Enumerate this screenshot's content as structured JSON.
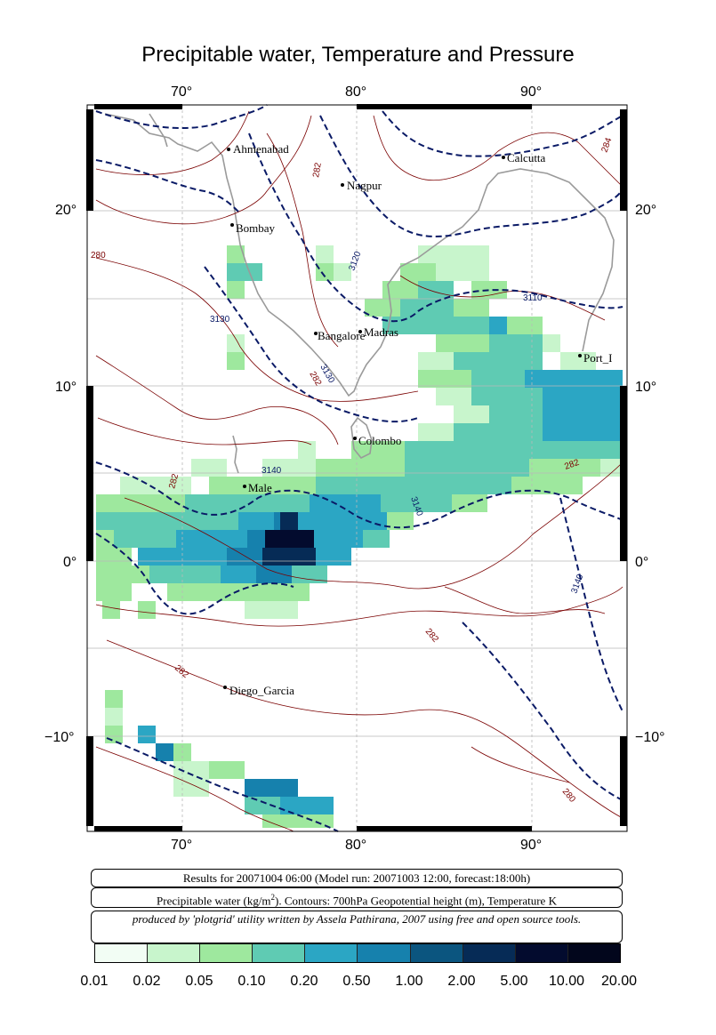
{
  "title": "Precipitable water, Temperature and Pressure",
  "axes": {
    "lon_ticks": [
      "70°",
      "80°",
      "90°"
    ],
    "lat_ticks": [
      "20°",
      "10°",
      "0°",
      "−10°"
    ]
  },
  "cities": [
    {
      "name": "Ahmenabad"
    },
    {
      "name": "Calcutta"
    },
    {
      "name": "Nagpur"
    },
    {
      "name": "Bombay"
    },
    {
      "name": "Bangalore"
    },
    {
      "name": "Madras"
    },
    {
      "name": "Port_I"
    },
    {
      "name": "Colombo"
    },
    {
      "name": "Male"
    },
    {
      "name": "Diego_Garcia"
    }
  ],
  "contour_labels": {
    "temperature": [
      "282",
      "280",
      "284",
      "282",
      "282",
      "282",
      "282",
      "282",
      "280"
    ],
    "geopotential": [
      "3120",
      "3110",
      "3130",
      "3130",
      "3140",
      "3140",
      "3140"
    ]
  },
  "info": {
    "line1": "Results for 20071004 06:00 (Model run: 20071003 12:00, forecast:18:00h)",
    "line2_pre": "Precipitable water (kg/m",
    "line2_sup": "2",
    "line2_post": ").  Contours: 700hPa Geopotential height (m), Temperature K",
    "line3": "produced by 'plotgrid' utility written by Assela Pathirana, 2007 using free and open source tools."
  },
  "colorbar": {
    "colors": [
      "#f2fdf4",
      "#c8f5cc",
      "#9ee89e",
      "#5fcbb3",
      "#2ba6c4",
      "#1681ad",
      "#0b557f",
      "#062b56",
      "#030b2e",
      "#02061c"
    ],
    "ticks": [
      "0.01",
      "0.02",
      "0.05",
      "0.10",
      "0.20",
      "0.50",
      "1.00",
      "2.00",
      "5.00",
      "10.00",
      "20.00"
    ]
  }
}
